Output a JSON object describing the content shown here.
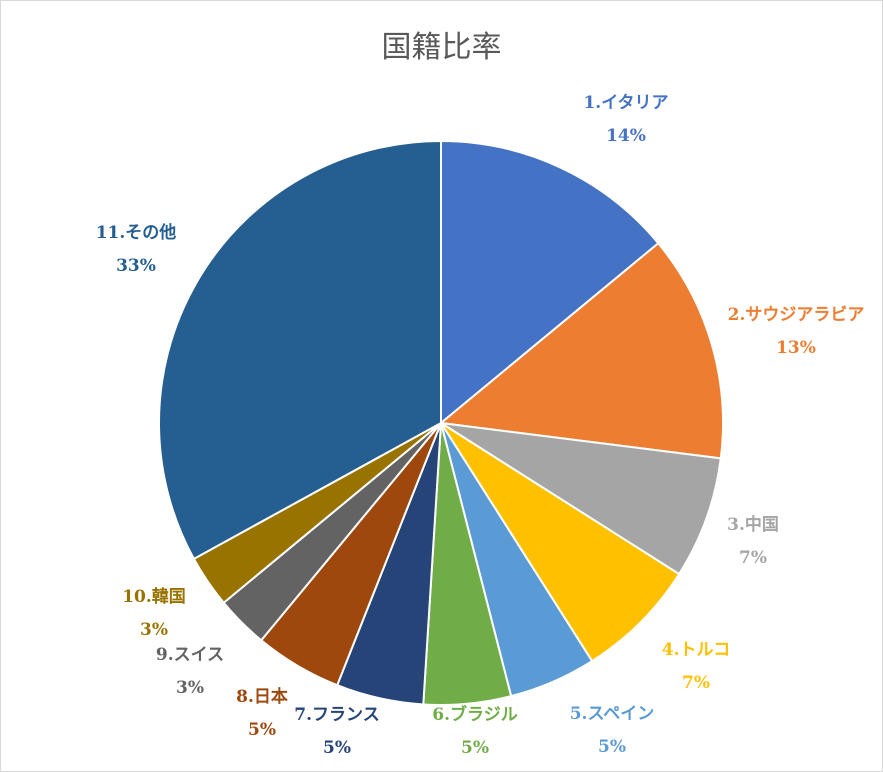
{
  "chart_data": {
    "type": "pie",
    "title": "国籍比率",
    "slices": [
      {
        "label": "1.イタリア",
        "value": 14,
        "percent_label": "14%",
        "color": "#4472c4"
      },
      {
        "label": "2.サウジアラビア",
        "value": 13,
        "percent_label": "13%",
        "color": "#ed7d31"
      },
      {
        "label": "3.中国",
        "value": 7,
        "percent_label": "7%",
        "color": "#a5a5a5"
      },
      {
        "label": "4.トルコ",
        "value": 7,
        "percent_label": "7%",
        "color": "#ffc000"
      },
      {
        "label": "5.スペイン",
        "value": 5,
        "percent_label": "5%",
        "color": "#5b9bd5"
      },
      {
        "label": "6.ブラジル",
        "value": 5,
        "percent_label": "5%",
        "color": "#70ad47"
      },
      {
        "label": "7.フランス",
        "value": 5,
        "percent_label": "5%",
        "color": "#264478"
      },
      {
        "label": "8.日本",
        "value": 5,
        "percent_label": "5%",
        "color": "#9e480e"
      },
      {
        "label": "9.スイス",
        "value": 3,
        "percent_label": "3%",
        "color": "#636363"
      },
      {
        "label": "10.韓国",
        "value": 3,
        "percent_label": "3%",
        "color": "#997300"
      },
      {
        "label": "11.その他",
        "value": 33,
        "percent_label": "33%",
        "color": "#255e91"
      }
    ],
    "legend": "none",
    "data_labels": "outside"
  }
}
